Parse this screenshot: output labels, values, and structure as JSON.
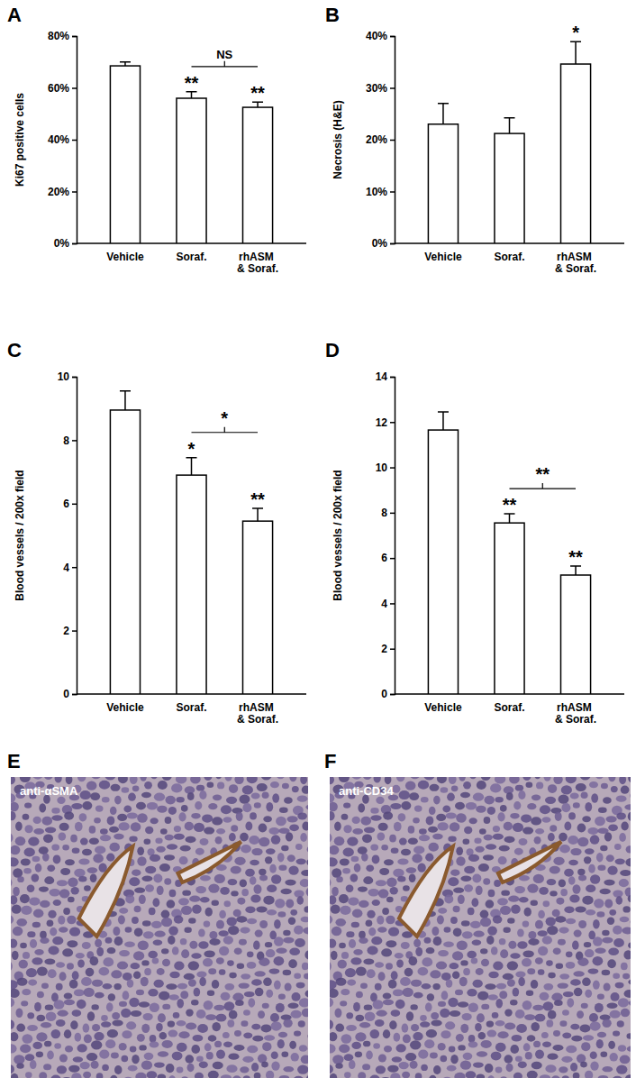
{
  "chart_data": [
    {
      "type": "bar",
      "title": "A",
      "ylabel": "Ki67 positive cells",
      "categories": [
        "Vehicle",
        "Soraf.",
        "rhASM & Soraf."
      ],
      "values": [
        68.5,
        56,
        52.5
      ],
      "errors": [
        1.5,
        2.5,
        2
      ],
      "color": "#ffffff",
      "ylim": [
        0,
        80
      ],
      "yticks": [
        {
          "value": 0,
          "label": "0%"
        },
        {
          "value": 20,
          "label": "20%"
        },
        {
          "value": 40,
          "label": "40%"
        },
        {
          "value": 60,
          "label": "60%"
        },
        {
          "value": 80,
          "label": "80%"
        }
      ],
      "annotations": [
        null,
        "**",
        "**"
      ],
      "comparisons": [
        {
          "categories": [
            1,
            2
          ],
          "label": "NS"
        }
      ]
    },
    {
      "type": "bar",
      "title": "B",
      "ylabel": "Necrosis (H&E)",
      "categories": [
        "Vehicle",
        "Soraf.",
        "rhASM & Soraf."
      ],
      "values": [
        23,
        21.2,
        34.6
      ],
      "errors": [
        4,
        3,
        4.3
      ],
      "color": "#ffffff",
      "ylim": [
        0,
        40
      ],
      "yticks": [
        {
          "value": 0,
          "label": "0%"
        },
        {
          "value": 10,
          "label": "10%"
        },
        {
          "value": 20,
          "label": "20%"
        },
        {
          "value": 30,
          "label": "30%"
        },
        {
          "value": 40,
          "label": "40%"
        }
      ],
      "annotations": [
        null,
        null,
        "*"
      ],
      "comparisons": []
    },
    {
      "type": "bar",
      "title": "C",
      "ylabel": "Blood vessels / 200x field",
      "categories": [
        "Vehicle",
        "Soraf.",
        "rhASM & Soraf."
      ],
      "values": [
        8.95,
        6.9,
        5.45
      ],
      "errors": [
        0.6,
        0.55,
        0.4
      ],
      "color": "#ffffff",
      "ylim": [
        0,
        10
      ],
      "yticks": [
        0,
        2,
        4,
        6,
        8,
        10
      ],
      "annotations": [
        null,
        "*",
        "**"
      ],
      "comparisons": [
        {
          "categories": [
            1,
            2
          ],
          "label": "*"
        }
      ]
    },
    {
      "type": "bar",
      "title": "D",
      "ylabel": "Blood vessels / 200x field",
      "categories": [
        "Vehicle",
        "Soraf.",
        "rhASM & Soraf."
      ],
      "values": [
        11.65,
        7.55,
        5.25
      ],
      "errors": [
        0.8,
        0.4,
        0.4
      ],
      "color": "#ffffff",
      "ylim": [
        0,
        14
      ],
      "yticks": [
        0,
        2,
        4,
        6,
        8,
        10,
        12,
        14
      ],
      "annotations": [
        null,
        "**",
        "**"
      ],
      "comparisons": [
        {
          "categories": [
            1,
            2
          ],
          "label": "**"
        }
      ]
    }
  ],
  "images": [
    {
      "title": "E",
      "label": "anti-αSMA"
    },
    {
      "title": "F",
      "label": "anti-CD34"
    }
  ]
}
